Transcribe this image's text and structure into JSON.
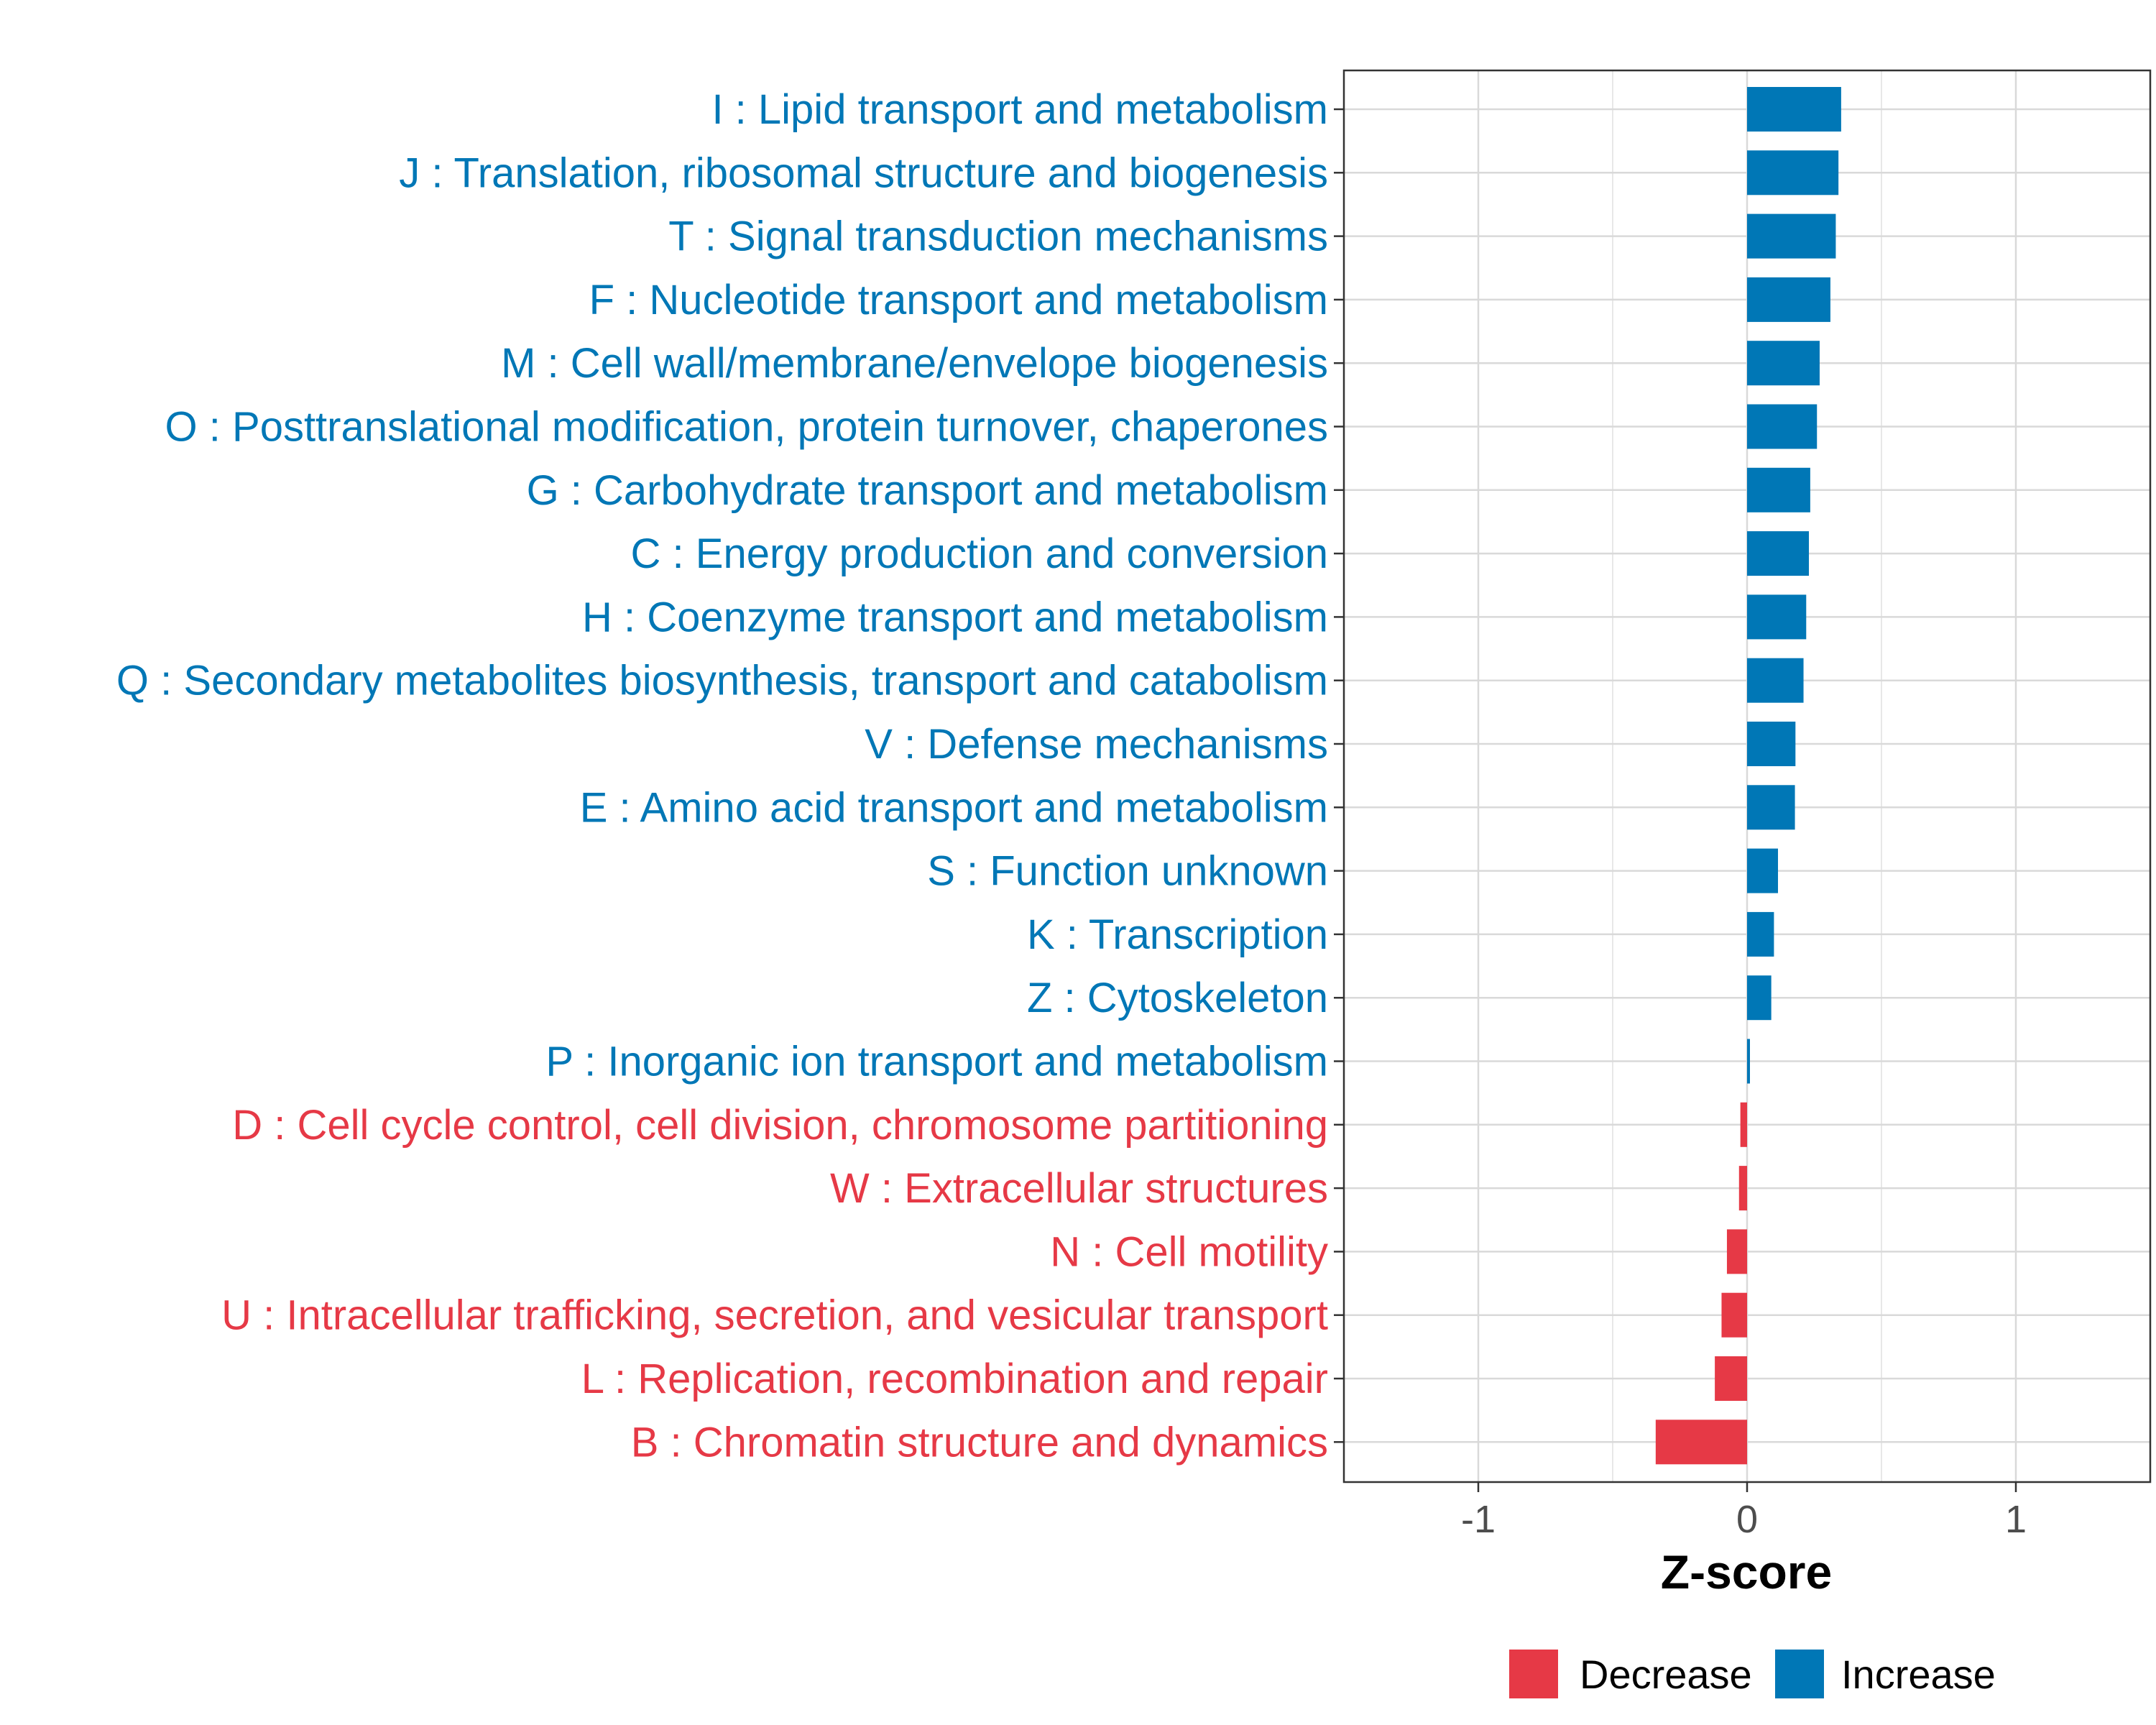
{
  "chart_data": {
    "type": "bar",
    "orientation": "horizontal",
    "title": "",
    "xlabel": "Z-score",
    "ylabel": "",
    "xlim": [
      -1.5,
      1.5
    ],
    "xticks": [
      -1,
      0,
      1
    ],
    "xtick_labels": [
      "-1",
      "0",
      "1"
    ],
    "grid": true,
    "legend_position": "bottom",
    "colors": {
      "Decrease": "#E63946",
      "Increase": "#0077B6"
    },
    "categories": [
      {
        "label": "I : Lipid transport and metabolism",
        "value": 0.35,
        "group": "Increase"
      },
      {
        "label": "J : Translation, ribosomal structure and biogenesis",
        "value": 0.34,
        "group": "Increase"
      },
      {
        "label": "T : Signal transduction mechanisms",
        "value": 0.33,
        "group": "Increase"
      },
      {
        "label": "F : Nucleotide transport and metabolism",
        "value": 0.31,
        "group": "Increase"
      },
      {
        "label": "M : Cell wall/membrane/envelope biogenesis",
        "value": 0.27,
        "group": "Increase"
      },
      {
        "label": "O : Posttranslational modification, protein turnover, chaperones",
        "value": 0.26,
        "group": "Increase"
      },
      {
        "label": "G : Carbohydrate transport and metabolism",
        "value": 0.235,
        "group": "Increase"
      },
      {
        "label": "C : Energy production and conversion",
        "value": 0.23,
        "group": "Increase"
      },
      {
        "label": "H : Coenzyme transport and metabolism",
        "value": 0.22,
        "group": "Increase"
      },
      {
        "label": "Q : Secondary metabolites biosynthesis, transport and catabolism",
        "value": 0.21,
        "group": "Increase"
      },
      {
        "label": "V : Defense mechanisms",
        "value": 0.18,
        "group": "Increase"
      },
      {
        "label": "E : Amino acid transport and metabolism",
        "value": 0.178,
        "group": "Increase"
      },
      {
        "label": "S : Function unknown",
        "value": 0.115,
        "group": "Increase"
      },
      {
        "label": "K : Transcription",
        "value": 0.1,
        "group": "Increase"
      },
      {
        "label": "Z : Cytoskeleton",
        "value": 0.09,
        "group": "Increase"
      },
      {
        "label": "P : Inorganic ion transport and metabolism",
        "value": 0.01,
        "group": "Increase"
      },
      {
        "label": "D : Cell cycle control, cell division, chromosome partitioning",
        "value": -0.025,
        "group": "Decrease"
      },
      {
        "label": "W : Extracellular structures",
        "value": -0.03,
        "group": "Decrease"
      },
      {
        "label": "N : Cell motility",
        "value": -0.075,
        "group": "Decrease"
      },
      {
        "label": "U : Intracellular trafficking, secretion, and vesicular transport",
        "value": -0.095,
        "group": "Decrease"
      },
      {
        "label": "L : Replication, recombination and repair",
        "value": -0.12,
        "group": "Decrease"
      },
      {
        "label": "B : Chromatin structure and dynamics",
        "value": -0.34,
        "group": "Decrease"
      }
    ],
    "legend": [
      {
        "label": "Decrease",
        "group": "Decrease"
      },
      {
        "label": "Increase",
        "group": "Increase"
      }
    ]
  }
}
